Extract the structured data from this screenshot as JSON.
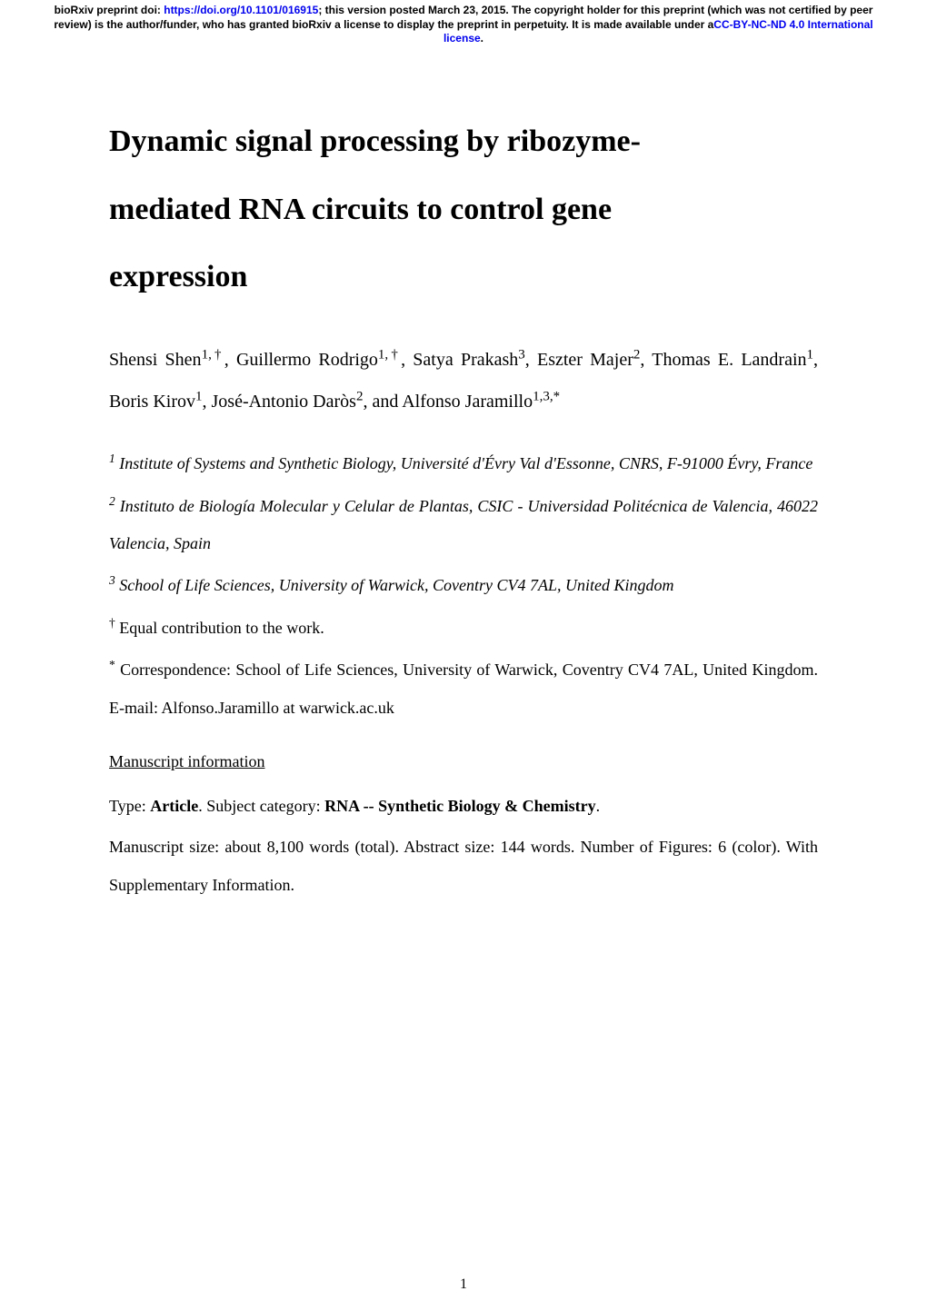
{
  "header": {
    "prefix": "bioRxiv preprint doi: ",
    "doi_url": "https://doi.org/10.1101/016915",
    "after_doi": "; this version posted March 23, 2015. The copyright holder for this preprint (which was not certified by peer review) is the author/funder, who has granted bioRxiv a license to display the preprint in perpetuity. It is made available under a",
    "cc_text": "CC-BY-NC-ND 4.0 International license",
    "period": "."
  },
  "title": {
    "line1": "Dynamic signal processing by ribozyme-",
    "line2": "mediated RNA circuits to control gene",
    "line3": "expression"
  },
  "authors_html": "Shensi Shen<sup>1,†</sup>, Guillermo Rodrigo<sup>1,†</sup>, Satya Prakash<sup>3</sup>, Eszter Majer<sup>2</sup>, Thomas E. Landrain<sup>1</sup>, Boris Kirov<sup>1</sup>, José-Antonio Daròs<sup>2</sup>, and Alfonso Jaramillo<sup>1,3,*</sup>",
  "affiliations": {
    "a1_sup": "1",
    "a1_text": " Institute of Systems and Synthetic Biology, Université d'Évry Val d'Essonne, CNRS, F-91000 Évry, France",
    "a2_sup": "2",
    "a2_text": " Instituto de Biología Molecular y Celular de Plantas, CSIC - Universidad Politécnica de Valencia, 46022 Valencia, Spain",
    "a3_sup": "3",
    "a3_text": " School of Life Sciences, University of Warwick, Coventry CV4 7AL, United Kingdom"
  },
  "notes": {
    "equal_sup": "†",
    "equal_text": " Equal contribution to the work.",
    "corr_sup": "*",
    "corr_text": " Correspondence: School of Life Sciences, University of Warwick, Coventry CV4 7AL, United Kingdom. E-mail: Alfonso.Jaramillo at warwick.ac.uk"
  },
  "manuscript": {
    "heading": "Manuscript information",
    "type_label": "Type: ",
    "type_value": "Article",
    "subject_label": ". Subject category: ",
    "subject_value": "RNA -- Synthetic Biology & Chemistry",
    "subject_period": ".",
    "size_text": "Manuscript size: about 8,100 words (total). Abstract size: 144 words. Number of Figures: 6 (color). With Supplementary Information."
  },
  "page_number": "1"
}
